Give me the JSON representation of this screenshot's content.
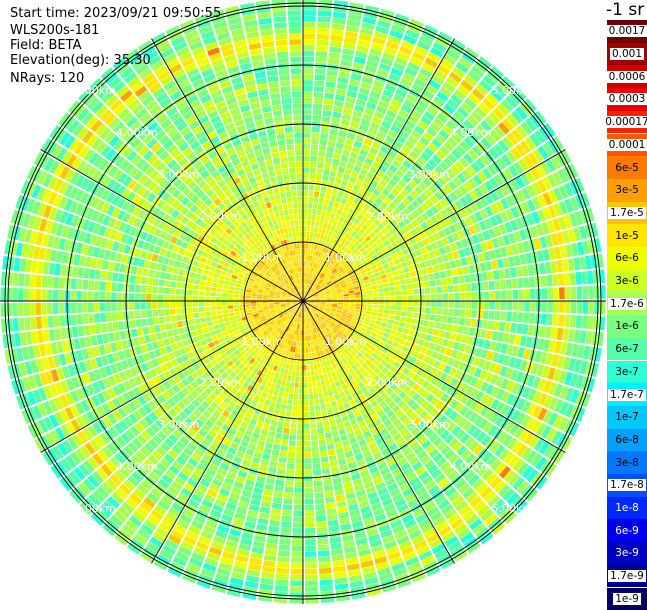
{
  "header": {
    "start_time": "Start time: 2023/09/21 09:50:55",
    "station": "WLS200s-181",
    "field": "Field: BETA",
    "elevation": "Elevation(deg): 35.30",
    "nrays": "NRays: 120"
  },
  "colorbar": {
    "unit_label": "-1 sr",
    "entries": [
      {
        "label": "0.0017",
        "color": "#730000",
        "text_bg": "#ffffff"
      },
      {
        "label": "0.001",
        "color": "#a00000",
        "text_bg": "#ffffff"
      },
      {
        "label": "0.0006",
        "color": "#cc0000",
        "text_bg": "#ffffff"
      },
      {
        "label": "0.0003",
        "color": "#e80000",
        "text_bg": "#ffffff"
      },
      {
        "label": "0.00017",
        "color": "#ff2200",
        "text_bg": "#ffffff"
      },
      {
        "label": "0.0001",
        "color": "#ff5500",
        "text_bg": "#ffffff"
      },
      {
        "label": "6e-5",
        "color": "#ff7a00",
        "text_bg": "none"
      },
      {
        "label": "3e-5",
        "color": "#ffa000",
        "text_bg": "none"
      },
      {
        "label": "1.7e-5",
        "color": "#ffc400",
        "text_bg": "#ffffff"
      },
      {
        "label": "1e-5",
        "color": "#ffe600",
        "text_bg": "none"
      },
      {
        "label": "6e-6",
        "color": "#eeff00",
        "text_bg": "none"
      },
      {
        "label": "3e-6",
        "color": "#ccff22",
        "text_bg": "none"
      },
      {
        "label": "1.7e-6",
        "color": "#a6ff55",
        "text_bg": "#ffffff"
      },
      {
        "label": "1e-6",
        "color": "#7aff80",
        "text_bg": "none"
      },
      {
        "label": "6e-7",
        "color": "#55ffaa",
        "text_bg": "none"
      },
      {
        "label": "3e-7",
        "color": "#2bffd5",
        "text_bg": "none"
      },
      {
        "label": "1.7e-7",
        "color": "#00eeff",
        "text_bg": "#ffffff"
      },
      {
        "label": "1e-7",
        "color": "#00c8ff",
        "text_bg": "none"
      },
      {
        "label": "6e-8",
        "color": "#00a0ff",
        "text_bg": "none"
      },
      {
        "label": "3e-8",
        "color": "#0078ff",
        "text_bg": "none"
      },
      {
        "label": "1.7e-8",
        "color": "#0050ff",
        "text_bg": "#ffffff"
      },
      {
        "label": "1e-8",
        "color": "#0028ff",
        "text_bg": "none"
      },
      {
        "label": "6e-9",
        "color": "#0000f0",
        "text_bg": "none"
      },
      {
        "label": "3e-9",
        "color": "#0000c0",
        "text_bg": "none"
      },
      {
        "label": "1.7e-9",
        "color": "#000090",
        "text_bg": "#ffffff"
      },
      {
        "label": "1e-9",
        "color": "#000060",
        "text_bg": "#ffffff"
      }
    ]
  },
  "range_labels": [
    "1.00km",
    "2.00km",
    "3.00km",
    "4.00km",
    "5.00km"
  ]
}
